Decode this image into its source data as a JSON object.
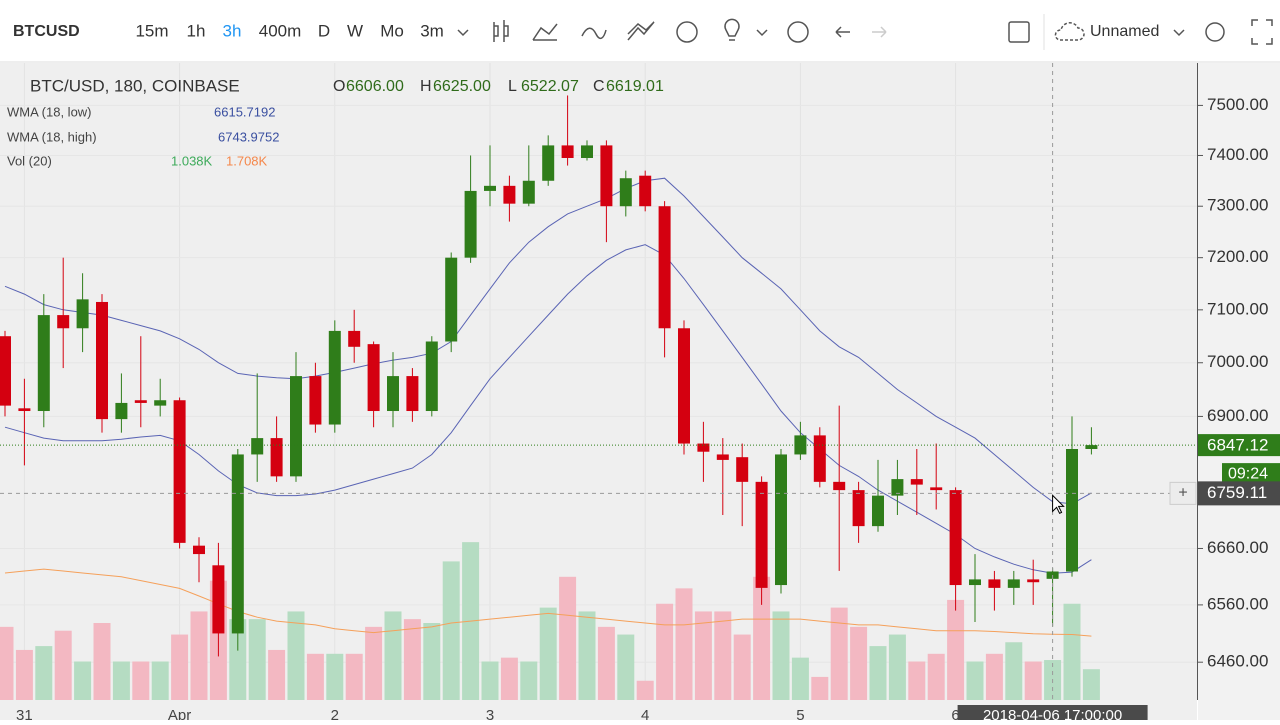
{
  "toolbar": {
    "symbol": "BTCUSD",
    "intervals": [
      "15m",
      "1h",
      "3h",
      "400m",
      "D",
      "W",
      "Mo",
      "3m"
    ],
    "active_interval": 2,
    "layout_name": "Unnamed"
  },
  "legend": {
    "title": "BTC/USD, 180, COINBASE",
    "ohlc": [
      {
        "label": "O",
        "value": "6606.00"
      },
      {
        "label": "H",
        "value": "6625.00"
      },
      {
        "label": "L",
        "value": "6522.07"
      },
      {
        "label": "C",
        "value": "6619.01"
      }
    ],
    "studies": [
      {
        "name": "WMA (18, low)",
        "values": [
          "6615.7192"
        ]
      },
      {
        "name": "WMA (18, high)",
        "values": [
          "6743.9752"
        ]
      },
      {
        "name": "Vol (20)",
        "values": [
          "1.038K",
          "1.708K"
        ]
      }
    ]
  },
  "chart_data": {
    "type": "candlestick",
    "log_scale": true,
    "categories": [
      null,
      "31",
      null,
      null,
      null,
      null,
      null,
      null,
      null,
      "Apr",
      null,
      null,
      null,
      null,
      null,
      null,
      null,
      "2",
      null,
      null,
      null,
      null,
      null,
      null,
      null,
      "3",
      null,
      null,
      null,
      null,
      null,
      null,
      null,
      "4",
      null,
      null,
      null,
      null,
      null,
      null,
      null,
      "5",
      null,
      null,
      null,
      null,
      null,
      null,
      null,
      "6",
      null,
      null,
      null,
      null,
      null,
      null,
      null
    ],
    "open": [
      7050,
      6915,
      6910,
      7090,
      7065,
      7115,
      6895,
      6930,
      6920,
      6930,
      6665,
      6630,
      6510,
      6830,
      6860,
      6790,
      6975,
      6885,
      7060,
      7035,
      6910,
      6975,
      6910,
      7040,
      7200,
      7330,
      7340,
      7305,
      7350,
      7420,
      7395,
      7420,
      7300,
      7360,
      7300,
      7065,
      6850,
      6830,
      6825,
      6780,
      6595,
      6830,
      6865,
      6780,
      6765,
      6700,
      6755,
      6785,
      6770,
      6765,
      6595,
      6605,
      6590,
      6605,
      6606,
      6619,
      6840
    ],
    "high": [
      7060,
      6970,
      7130,
      7200,
      7170,
      7130,
      6980,
      7050,
      6970,
      6935,
      6680,
      6670,
      6840,
      6980,
      6900,
      7020,
      7000,
      7080,
      7100,
      7040,
      7020,
      6990,
      7050,
      7210,
      7400,
      7420,
      7360,
      7420,
      7440,
      7520,
      7430,
      7430,
      7370,
      7370,
      7310,
      7080,
      6890,
      6860,
      6850,
      6790,
      6840,
      6890,
      6880,
      6920,
      6780,
      6820,
      6820,
      6840,
      6850,
      6770,
      6650,
      6620,
      6620,
      6640,
      6625,
      6900,
      6880
    ],
    "low": [
      6900,
      6810,
      6880,
      6990,
      7020,
      6870,
      6870,
      6880,
      6900,
      6660,
      6600,
      6470,
      6480,
      6780,
      6780,
      6780,
      6870,
      6870,
      7000,
      6880,
      6880,
      6890,
      6900,
      7020,
      7190,
      7300,
      7270,
      7300,
      7340,
      7380,
      7390,
      7230,
      7280,
      7290,
      7010,
      6830,
      6780,
      6720,
      6700,
      6560,
      6580,
      6820,
      6770,
      6620,
      6670,
      6690,
      6720,
      6720,
      6730,
      6550,
      6530,
      6550,
      6560,
      6560,
      6522.07,
      6610,
      6830
    ],
    "close": [
      6920,
      6910,
      7090,
      7065,
      7120,
      6895,
      6925,
      6925,
      6930,
      6670,
      6650,
      6510,
      6830,
      6860,
      6790,
      6975,
      6885,
      7060,
      7030,
      6910,
      6975,
      6910,
      7040,
      7200,
      7330,
      7340,
      7305,
      7350,
      7420,
      7395,
      7420,
      7300,
      7355,
      7300,
      7065,
      6850,
      6835,
      6820,
      6780,
      6590,
      6830,
      6865,
      6780,
      6765,
      6700,
      6755,
      6785,
      6775,
      6765,
      6595,
      6605,
      6590,
      6605,
      6600,
      6619.01,
      6840,
      6847.12
    ],
    "volume": [
      1.9,
      1.3,
      1.4,
      1.8,
      1.0,
      2.0,
      1.0,
      1.0,
      1.0,
      1.7,
      2.3,
      3.1,
      2.1,
      2.1,
      1.3,
      2.3,
      1.2,
      1.2,
      1.2,
      1.9,
      2.3,
      2.1,
      2.0,
      3.6,
      4.1,
      1.0,
      1.1,
      1.0,
      2.4,
      3.2,
      2.3,
      1.9,
      1.7,
      0.5,
      2.5,
      2.9,
      2.3,
      2.3,
      1.7,
      3.2,
      2.3,
      1.1,
      0.6,
      2.4,
      1.9,
      1.4,
      1.7,
      1.0,
      1.2,
      2.6,
      1.0,
      1.2,
      1.5,
      1.0,
      1.038,
      2.5,
      0.8
    ],
    "up_color": "#2f7d1a",
    "down_color": "#d40010",
    "volume_up_color": "#b5dcc2",
    "volume_down_color": "#f3b8c2",
    "series": [
      {
        "name": "WMA (18, low)",
        "color": "#5a64b4",
        "values": [
          6880,
          6870,
          6860,
          6855,
          6855,
          6855,
          6858,
          6862,
          6865,
          6855,
          6830,
          6800,
          6775,
          6760,
          6755,
          6755,
          6758,
          6765,
          6775,
          6785,
          6795,
          6805,
          6830,
          6870,
          6920,
          6970,
          7010,
          7050,
          7090,
          7130,
          7165,
          7195,
          7215,
          7225,
          7205,
          7160,
          7110,
          7060,
          7010,
          6960,
          6910,
          6870,
          6840,
          6810,
          6790,
          6765,
          6745,
          6725,
          6705,
          6685,
          6660,
          6645,
          6632,
          6622,
          6615.7192,
          6618,
          6640
        ]
      },
      {
        "name": "WMA (18, high)",
        "color": "#5a64b4",
        "values": [
          7145,
          7130,
          7110,
          7100,
          7095,
          7090,
          7080,
          7070,
          7060,
          7045,
          7025,
          7000,
          6980,
          6975,
          6972,
          6970,
          6975,
          6982,
          6990,
          6998,
          7005,
          7010,
          7018,
          7040,
          7090,
          7140,
          7190,
          7230,
          7260,
          7285,
          7300,
          7315,
          7335,
          7350,
          7355,
          7320,
          7280,
          7240,
          7200,
          7170,
          7140,
          7100,
          7060,
          7030,
          7010,
          6980,
          6950,
          6925,
          6900,
          6880,
          6860,
          6830,
          6800,
          6770,
          6743.9752,
          6740,
          6760
        ]
      },
      {
        "name": "Vol (20)",
        "color": "#f5a05a",
        "axis": "volume",
        "values": [
          3.3,
          3.35,
          3.4,
          3.35,
          3.3,
          3.25,
          3.2,
          3.1,
          3.0,
          2.9,
          2.7,
          2.5,
          2.3,
          2.15,
          2.05,
          2.0,
          1.95,
          1.85,
          1.8,
          1.75,
          1.8,
          1.85,
          1.9,
          2.0,
          2.05,
          2.1,
          2.15,
          2.2,
          2.25,
          2.2,
          2.15,
          2.1,
          2.05,
          2.0,
          1.95,
          1.95,
          2.0,
          2.05,
          2.1,
          2.1,
          2.1,
          2.1,
          2.05,
          2.0,
          1.95,
          1.95,
          1.9,
          1.85,
          1.8,
          1.8,
          1.8,
          1.78,
          1.75,
          1.72,
          1.708,
          1.7,
          1.66
        ]
      }
    ],
    "ylim": [
      6400,
      7600
    ],
    "yticks": [
      {
        "value": 7500,
        "label": "7500.00"
      },
      {
        "value": 7400,
        "label": "7400.00"
      },
      {
        "value": 7300,
        "label": "7300.00"
      },
      {
        "value": 7200,
        "label": "7200.00"
      },
      {
        "value": 7100,
        "label": "7100.00"
      },
      {
        "value": 7000,
        "label": "7000.00"
      },
      {
        "value": 6900,
        "label": "6900.00"
      },
      {
        "value": 6660,
        "label": "6660.00"
      },
      {
        "value": 6560,
        "label": "6560.00"
      },
      {
        "value": 6460,
        "label": "6460.00"
      }
    ],
    "last_price": 6847.12,
    "countdown": "09:24",
    "crosshair_price": 6759.11,
    "crosshair_time": "2018-04-06 17:00:00"
  }
}
